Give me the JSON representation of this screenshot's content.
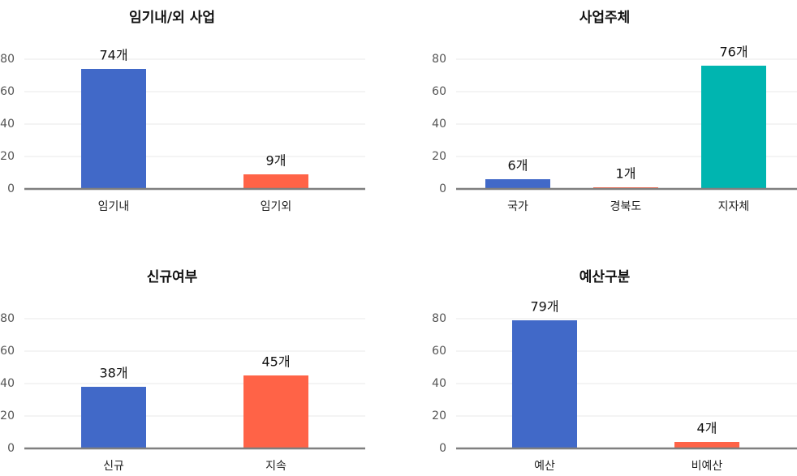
{
  "chart_data": [
    {
      "type": "bar",
      "title": "임기내/외 사업",
      "categories": [
        "임기내",
        "임기외"
      ],
      "values": [
        74,
        9
      ],
      "data_labels": [
        "74개",
        "9개"
      ],
      "colors": [
        "#4169C8",
        "#FF6347"
      ],
      "ylim": [
        0,
        80
      ],
      "yticks": [
        0,
        20,
        40,
        60,
        80
      ],
      "grid": true,
      "xlabel": "",
      "ylabel": ""
    },
    {
      "type": "bar",
      "title": "사업주체",
      "categories": [
        "국가",
        "경북도",
        "지자체"
      ],
      "values": [
        6,
        1,
        76
      ],
      "data_labels": [
        "6개",
        "1개",
        "76개"
      ],
      "colors": [
        "#4169C8",
        "#FF6347",
        "#00B5B0"
      ],
      "ylim": [
        0,
        80
      ],
      "yticks": [
        0,
        20,
        40,
        60,
        80
      ],
      "grid": true,
      "xlabel": "",
      "ylabel": ""
    },
    {
      "type": "bar",
      "title": "신규여부",
      "categories": [
        "신규",
        "지속"
      ],
      "values": [
        38,
        45
      ],
      "data_labels": [
        "38개",
        "45개"
      ],
      "colors": [
        "#4169C8",
        "#FF6347"
      ],
      "ylim": [
        0,
        80
      ],
      "yticks": [
        0,
        20,
        40,
        60,
        80
      ],
      "grid": true,
      "xlabel": "",
      "ylabel": ""
    },
    {
      "type": "bar",
      "title": "예산구분",
      "categories": [
        "예산",
        "비예산"
      ],
      "values": [
        79,
        4
      ],
      "data_labels": [
        "79개",
        "4개"
      ],
      "colors": [
        "#4169C8",
        "#FF6347"
      ],
      "ylim": [
        0,
        80
      ],
      "yticks": [
        0,
        20,
        40,
        60,
        80
      ],
      "grid": true,
      "xlabel": "",
      "ylabel": ""
    }
  ]
}
